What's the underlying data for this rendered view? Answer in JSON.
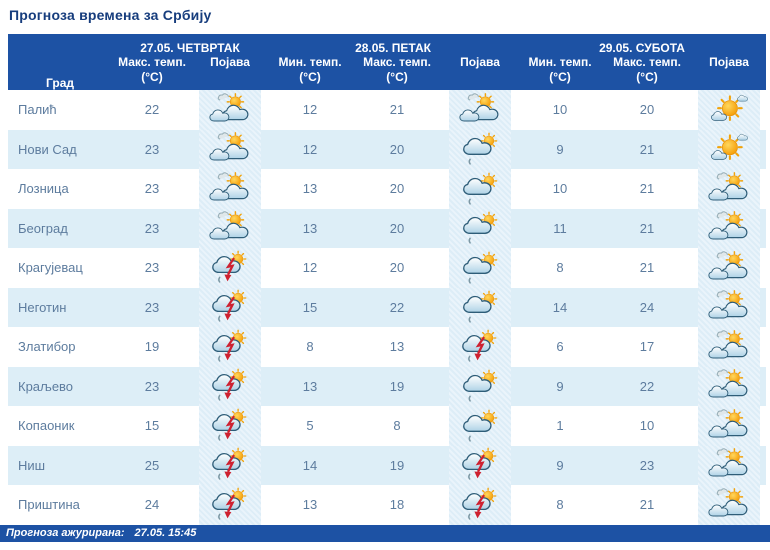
{
  "title": "Прогноза времена за Србију",
  "colors": {
    "header_bg": "#1d52a4",
    "footer_bg": "#1d52a4",
    "alt_row_bg": "#ddeef7",
    "icon_cell_bg": "#e4f0f8",
    "body_text": "#5d7c9e",
    "title_text": "#173d7d",
    "sun": "#f59d05",
    "lightning": "#ce2130",
    "cloud_outline": "#2e5d78"
  },
  "table": {
    "header": {
      "city": "Град",
      "days": [
        {
          "date": "27.05. ЧЕТВРТАК"
        },
        {
          "date": "28.05. ПЕТАК"
        },
        {
          "date": "29.05. СУБОТА"
        }
      ],
      "col_labels": {
        "min": "Мин. темп.",
        "max": "Макс. темп.",
        "unit": "(°C)",
        "phenomenon": "Појава"
      }
    },
    "rows": [
      {
        "city": "Палић",
        "thu_max": 22,
        "thu_icon": "partly-cloudy",
        "fri_min": 12,
        "fri_max": 21,
        "fri_icon": "partly-cloudy",
        "sat_min": 10,
        "sat_max": 20,
        "sat_icon": "mostly-sunny"
      },
      {
        "city": "Нови Сад",
        "thu_max": 23,
        "thu_icon": "partly-cloudy",
        "fri_min": 12,
        "fri_max": 20,
        "fri_icon": "rain-sun",
        "sat_min": 9,
        "sat_max": 21,
        "sat_icon": "mostly-sunny"
      },
      {
        "city": "Лозница",
        "thu_max": 23,
        "thu_icon": "partly-cloudy",
        "fri_min": 13,
        "fri_max": 20,
        "fri_icon": "rain-sun",
        "sat_min": 10,
        "sat_max": 21,
        "sat_icon": "partly-cloudy"
      },
      {
        "city": "Београд",
        "thu_max": 23,
        "thu_icon": "partly-cloudy",
        "fri_min": 13,
        "fri_max": 20,
        "fri_icon": "rain-sun",
        "sat_min": 11,
        "sat_max": 21,
        "sat_icon": "partly-cloudy"
      },
      {
        "city": "Крагујевац",
        "thu_max": 23,
        "thu_icon": "thunderstorm",
        "fri_min": 12,
        "fri_max": 20,
        "fri_icon": "rain-sun",
        "sat_min": 8,
        "sat_max": 21,
        "sat_icon": "partly-cloudy"
      },
      {
        "city": "Неготин",
        "thu_max": 23,
        "thu_icon": "thunderstorm",
        "fri_min": 15,
        "fri_max": 22,
        "fri_icon": "rain-sun",
        "sat_min": 14,
        "sat_max": 24,
        "sat_icon": "partly-cloudy"
      },
      {
        "city": "Златибор",
        "thu_max": 19,
        "thu_icon": "thunderstorm",
        "fri_min": 8,
        "fri_max": 13,
        "fri_icon": "thunderstorm",
        "sat_min": 6,
        "sat_max": 17,
        "sat_icon": "partly-cloudy"
      },
      {
        "city": "Краљево",
        "thu_max": 23,
        "thu_icon": "thunderstorm",
        "fri_min": 13,
        "fri_max": 19,
        "fri_icon": "rain-sun",
        "sat_min": 9,
        "sat_max": 22,
        "sat_icon": "partly-cloudy"
      },
      {
        "city": "Копаоник",
        "thu_max": 15,
        "thu_icon": "thunderstorm",
        "fri_min": 5,
        "fri_max": 8,
        "fri_icon": "rain-sun",
        "sat_min": 1,
        "sat_max": 10,
        "sat_icon": "partly-cloudy"
      },
      {
        "city": "Ниш",
        "thu_max": 25,
        "thu_icon": "thunderstorm",
        "fri_min": 14,
        "fri_max": 19,
        "fri_icon": "thunderstorm",
        "sat_min": 9,
        "sat_max": 23,
        "sat_icon": "partly-cloudy"
      },
      {
        "city": "Приштина",
        "thu_max": 24,
        "thu_icon": "thunderstorm",
        "fri_min": 13,
        "fri_max": 18,
        "fri_icon": "thunderstorm",
        "sat_min": 8,
        "sat_max": 21,
        "sat_icon": "partly-cloudy"
      }
    ]
  },
  "icons": {
    "partly-cloudy": "sun behind two clouds",
    "mostly-sunny": "large sun with small clouds",
    "rain-sun": "cloud with sun and light rain",
    "thunderstorm": "cloud with sun, red lightning arrow and drizzle"
  },
  "footer": {
    "label": "Прогноза ажурирана:",
    "value": "27.05. 15:45"
  }
}
